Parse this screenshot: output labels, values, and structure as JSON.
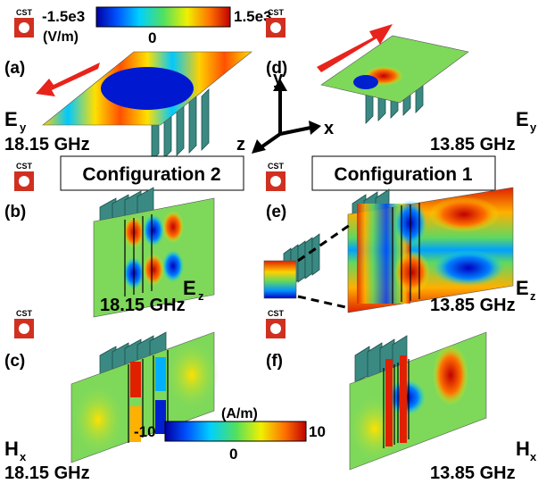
{
  "efield_colorbar": {
    "min": "-1.5e3",
    "max": "1.5e3",
    "unit": "(V/m)",
    "mid": "0"
  },
  "hfield_colorbar": {
    "min": "-10",
    "max": "10",
    "unit": "(A/m)",
    "mid": "0"
  },
  "cst_logo_text": "CST",
  "configurations": {
    "left": "Configuration 2",
    "right": "Configuration 1"
  },
  "axes": {
    "x": "x",
    "y": "y",
    "z": "z"
  },
  "panels": {
    "a": {
      "label": "(a)",
      "component": "E",
      "sub": "y",
      "freq": "18.15 GHz"
    },
    "b": {
      "label": "(b)",
      "component": "E",
      "sub": "z",
      "freq": "18.15 GHz"
    },
    "c": {
      "label": "(c)",
      "component": "H",
      "sub": "x",
      "freq": "18.15 GHz"
    },
    "d": {
      "label": "(d)",
      "component": "E",
      "sub": "y",
      "freq": "13.85 GHz"
    },
    "e": {
      "label": "(e)",
      "component": "E",
      "sub": "z",
      "freq": "13.85 GHz"
    },
    "f": {
      "label": "(f)",
      "component": "H",
      "sub": "x",
      "freq": "13.85 GHz"
    }
  },
  "colors": {
    "arrow": "#e8231b",
    "fin": "#3a8a83",
    "fin_dark": "#2a6d68",
    "field_bg": "#7ed85a"
  }
}
